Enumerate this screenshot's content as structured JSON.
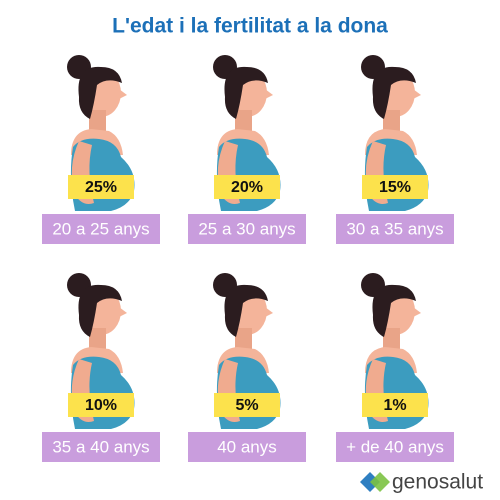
{
  "header": {
    "title": "L'edat i la fertilitat a la dona"
  },
  "items": [
    {
      "percentage": "25%",
      "age": "20 a 25 anys"
    },
    {
      "percentage": "20%",
      "age": "25 a 30 anys"
    },
    {
      "percentage": "15%",
      "age": "30 a 35 anys"
    },
    {
      "percentage": "10%",
      "age": "35 a 40 anys"
    },
    {
      "percentage": "5%",
      "age": "40 anys"
    },
    {
      "percentage": "1%",
      "age": "+ de 40 anys"
    }
  ],
  "brand": {
    "name": "genosalut"
  }
}
